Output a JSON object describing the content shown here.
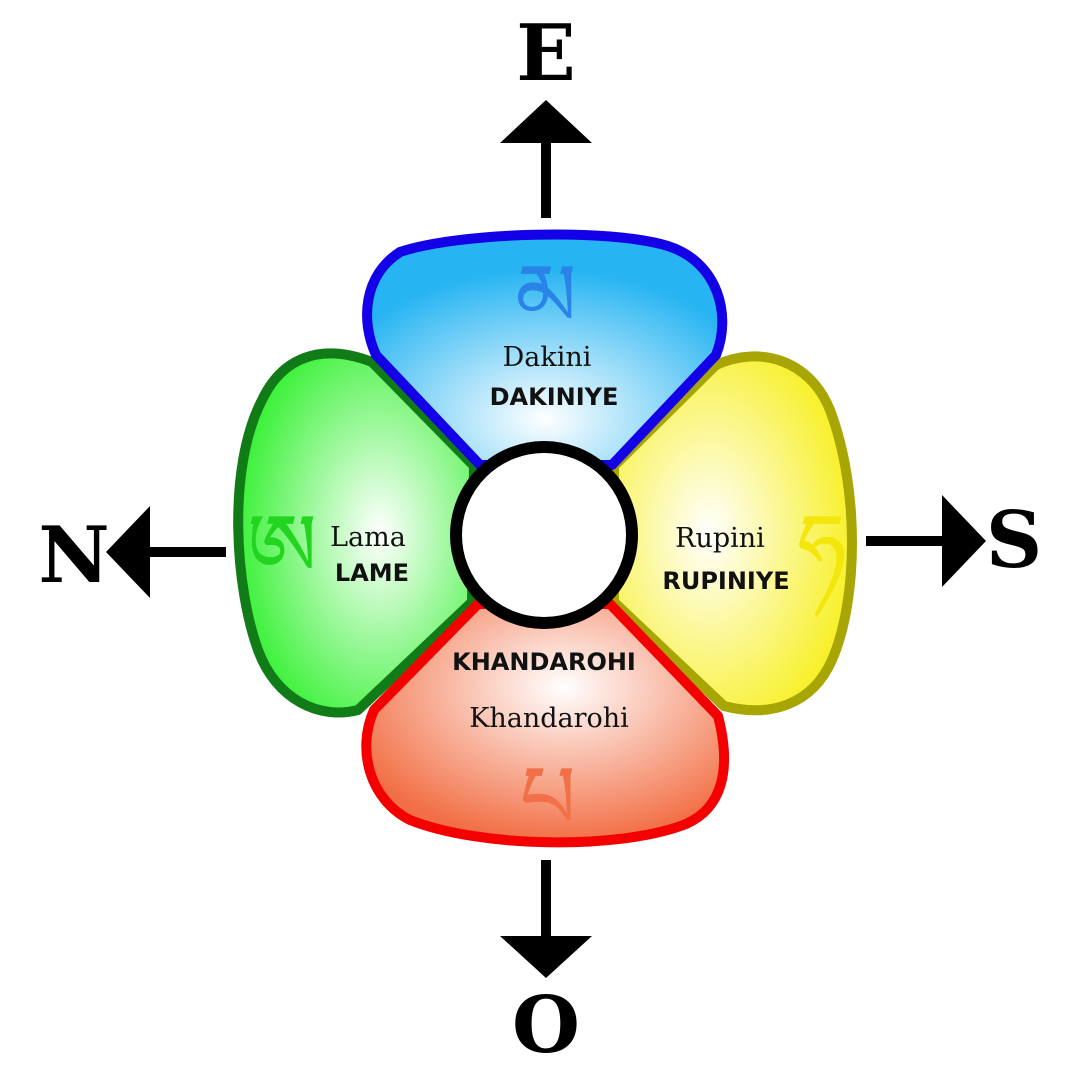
{
  "compass": {
    "east": "E",
    "north": "N",
    "south": "S",
    "west": "O"
  },
  "petals": {
    "top": {
      "name": "Dakini",
      "mantra": "DAKINIYE",
      "syllable": "མ",
      "fill": "#26b4f2",
      "stroke": "#1400e6"
    },
    "left": {
      "name": "Lama",
      "mantra": "LAME",
      "syllable": "ཨ",
      "fill": "#2df02a",
      "stroke": "#117c17"
    },
    "right": {
      "name": "Rupini",
      "mantra": "RUPINIYE",
      "syllable": "ཧ",
      "fill": "#f7ef19",
      "stroke": "#a8a604"
    },
    "bottom": {
      "name": "Khandarohi",
      "mantra": "KHANDAROHI",
      "syllable": "པ",
      "fill": "#f26f45",
      "stroke": "#f50000"
    }
  },
  "center": {
    "fill": "#ffffff",
    "stroke": "#000000"
  }
}
